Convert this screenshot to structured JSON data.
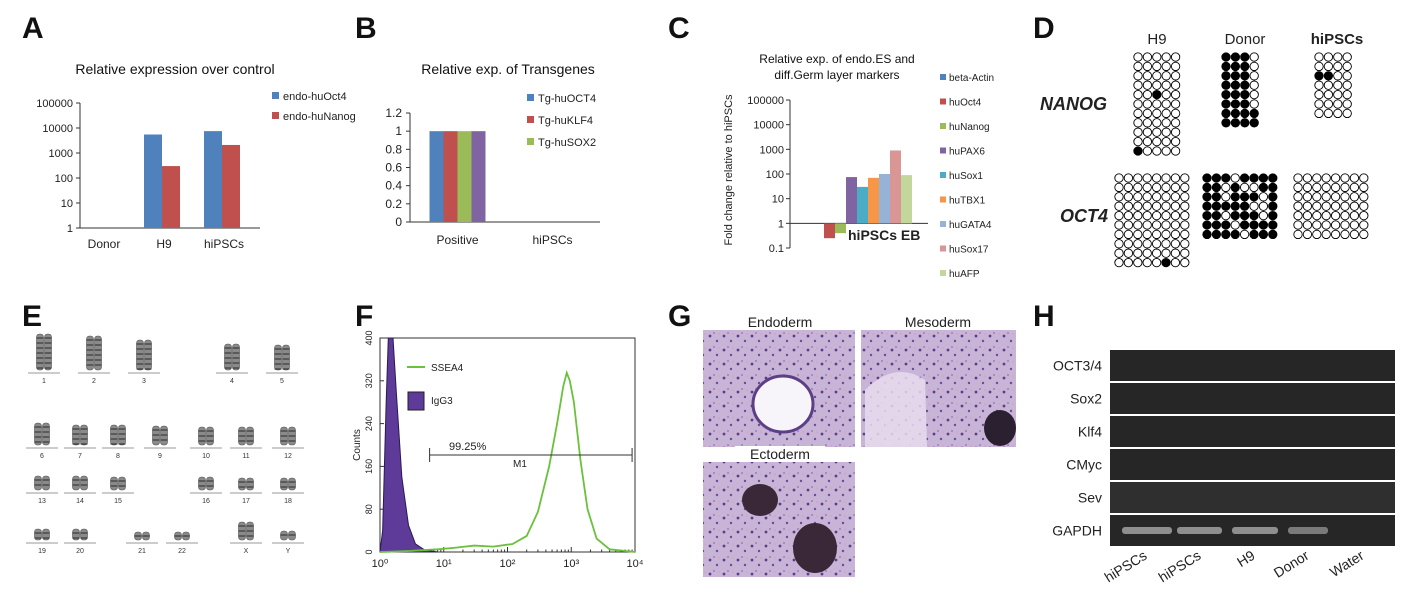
{
  "panel_labels": {
    "A": "A",
    "B": "B",
    "C": "C",
    "D": "D",
    "E": "E",
    "F": "F",
    "G": "G",
    "H": "H"
  },
  "colors": {
    "blue": "#4f81bd",
    "red": "#c0504d",
    "green": "#9bbb59",
    "purple": "#8064a2",
    "teal": "#4bacc6",
    "orange": "#f79646",
    "ltblue": "#95b3d7",
    "salmon": "#d99694",
    "ltgreen": "#c3d69b",
    "histo_green": "#6ac13c",
    "histo_purple": "#5e3a99"
  },
  "chart_data": [
    {
      "id": "A",
      "type": "bar",
      "title": "Relative expression over control",
      "categories": [
        "Donor",
        "H9",
        "hiPSCs"
      ],
      "scale": "log",
      "ylim": [
        1,
        100000
      ],
      "yticks": [
        "1",
        "10",
        "100",
        "1000",
        "10000",
        "100000"
      ],
      "series": [
        {
          "name": "endo-huOct4",
          "values": [
            null,
            5500,
            7500
          ],
          "color": "#4f81bd"
        },
        {
          "name": "endo-huNanog",
          "values": [
            null,
            300,
            2100
          ],
          "color": "#c0504d"
        }
      ],
      "legend": "top-right"
    },
    {
      "id": "B",
      "type": "bar",
      "title": "Relative exp. of Transgenes",
      "categories": [
        "Positive",
        "hiPSCs"
      ],
      "ylim": [
        0,
        1.2
      ],
      "yticks": [
        "0",
        "0.2",
        "0.4",
        "0.6",
        "0.8",
        "1",
        "1.2"
      ],
      "series": [
        {
          "name": "Tg-huOCT4",
          "values": [
            1,
            0
          ],
          "color": "#4f81bd"
        },
        {
          "name": "Tg-huKLF4",
          "values": [
            1,
            0
          ],
          "color": "#c0504d"
        },
        {
          "name": "Tg-huSOX2",
          "values": [
            1,
            0
          ],
          "color": "#9bbb59"
        },
        {
          "name": "",
          "values": [
            1,
            0
          ],
          "color": "#8064a2"
        }
      ],
      "legend": "top-right"
    },
    {
      "id": "C",
      "type": "bar",
      "title_lines": [
        "Relative exp. of endo.ES and",
        "diff.Germ layer markers"
      ],
      "ylabel": "Fold change relative to hiPSCs",
      "category_label": "hiPSCs EB",
      "scale": "log",
      "ylim": [
        0.1,
        100000
      ],
      "yticks": [
        "0.1",
        "1",
        "10",
        "100",
        "1000",
        "10000",
        "100000"
      ],
      "series": [
        {
          "name": "beta-Actin",
          "value": 1,
          "color": "#4f81bd"
        },
        {
          "name": "huOct4",
          "value": 0.25,
          "color": "#c0504d"
        },
        {
          "name": "huNanog",
          "value": 0.4,
          "color": "#9bbb59"
        },
        {
          "name": "huPAX6",
          "value": 75,
          "color": "#8064a2"
        },
        {
          "name": "huSox1",
          "value": 30,
          "color": "#4bacc6"
        },
        {
          "name": "huTBX1",
          "value": 70,
          "color": "#f79646"
        },
        {
          "name": "huGATA4",
          "value": 100,
          "color": "#95b3d7"
        },
        {
          "name": "huSox17",
          "value": 900,
          "color": "#d99694"
        },
        {
          "name": "huAFP",
          "value": 90,
          "color": "#c3d69b"
        }
      ],
      "legend": "right"
    },
    {
      "id": "F",
      "type": "area",
      "xscale": "log",
      "xlim": [
        1,
        10000
      ],
      "ylim": [
        0,
        400
      ],
      "ylabel": "Counts",
      "yticks": [
        "0",
        "80",
        "160",
        "240",
        "320",
        "400"
      ],
      "xticks": [
        "10⁰",
        "10¹",
        "10²",
        "10³",
        "10⁴"
      ],
      "series": [
        {
          "name": "SSEA4",
          "color": "#6ac13c"
        },
        {
          "name": "IgG3",
          "color": "#5e3a99"
        }
      ],
      "gate": {
        "label": "M1",
        "percent": "99.25%",
        "range": [
          6,
          9000
        ]
      },
      "legend": "top-left"
    }
  ],
  "panelD": {
    "col_labels": [
      "H9",
      "Donor",
      "hiPSCs"
    ],
    "row_labels": [
      "NANOG",
      "OCT4"
    ]
  },
  "panelE": {
    "chromosomes": [
      "1",
      "2",
      "3",
      "4",
      "5",
      "6",
      "7",
      "8",
      "9",
      "10",
      "11",
      "12",
      "13",
      "14",
      "15",
      "16",
      "17",
      "18",
      "19",
      "20",
      "21",
      "22",
      "X",
      "Y"
    ]
  },
  "panelG": {
    "labels": [
      "Endoderm",
      "Mesoderm",
      "Ectoderm"
    ]
  },
  "panelH": {
    "rows": [
      "OCT3/4",
      "Sox2",
      "Klf4",
      "CMyc",
      "Sev",
      "GAPDH"
    ],
    "lanes": [
      "hiPSCs",
      "hiPSCs",
      "H9",
      "Donor",
      "Water"
    ]
  }
}
